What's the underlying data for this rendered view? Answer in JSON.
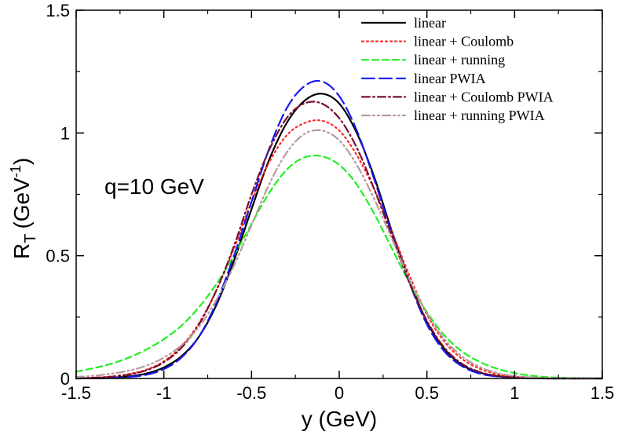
{
  "chart_data": {
    "type": "line",
    "xlabel": "y (GeV)",
    "ylabel_main": "R",
    "ylabel_sub": "T",
    "ylabel_unit": "(GeV",
    "ylabel_exp": "-1",
    "ylabel_close": ")",
    "annotation": "q=10 GeV",
    "xlim": [
      -1.5,
      1.5
    ],
    "ylim": [
      0,
      1.5
    ],
    "grid": false,
    "legend_position": "top-right",
    "x_ticks": [
      {
        "value": -1.5,
        "label": "-1.5"
      },
      {
        "value": -1.0,
        "label": "-1"
      },
      {
        "value": -0.5,
        "label": "-0.5"
      },
      {
        "value": 0.0,
        "label": "0"
      },
      {
        "value": 0.5,
        "label": "0.5"
      },
      {
        "value": 1.0,
        "label": "1"
      },
      {
        "value": 1.5,
        "label": "1.5"
      }
    ],
    "y_ticks": [
      {
        "value": 0.0,
        "label": "0"
      },
      {
        "value": 0.5,
        "label": "0.5"
      },
      {
        "value": 1.0,
        "label": "1"
      },
      {
        "value": 1.5,
        "label": "1.5"
      }
    ],
    "x": [
      -1.5,
      -1.4,
      -1.3,
      -1.2,
      -1.1,
      -1.0,
      -0.9,
      -0.8,
      -0.7,
      -0.6,
      -0.5,
      -0.4,
      -0.3,
      -0.2,
      -0.1,
      0.0,
      0.1,
      0.2,
      0.3,
      0.4,
      0.5,
      0.6,
      0.7,
      0.8,
      0.9,
      1.0,
      1.1,
      1.2,
      1.3,
      1.4,
      1.5
    ],
    "series": [
      {
        "name": "linear",
        "color": "#000000",
        "dash": "solid",
        "values": [
          0.0,
          0.001,
          0.003,
          0.008,
          0.02,
          0.045,
          0.09,
          0.17,
          0.3,
          0.48,
          0.69,
          0.89,
          1.04,
          1.13,
          1.16,
          1.12,
          1.0,
          0.82,
          0.6,
          0.4,
          0.23,
          0.12,
          0.055,
          0.024,
          0.01,
          0.004,
          0.001,
          0.0,
          0.0,
          0.0,
          0.0
        ]
      },
      {
        "name": "linear + Coulomb",
        "color": "#ff2a2a",
        "dash": "dotted",
        "values": [
          0.001,
          0.003,
          0.008,
          0.018,
          0.036,
          0.07,
          0.13,
          0.225,
          0.36,
          0.53,
          0.72,
          0.88,
          0.99,
          1.04,
          1.05,
          1.01,
          0.91,
          0.77,
          0.6,
          0.42,
          0.26,
          0.15,
          0.08,
          0.04,
          0.018,
          0.008,
          0.003,
          0.001,
          0.0,
          0.0,
          0.0
        ]
      },
      {
        "name": "linear + running",
        "color": "#22ee22",
        "dash": "dashed",
        "values": [
          0.028,
          0.042,
          0.06,
          0.085,
          0.118,
          0.16,
          0.215,
          0.29,
          0.385,
          0.5,
          0.63,
          0.755,
          0.85,
          0.9,
          0.905,
          0.87,
          0.79,
          0.67,
          0.53,
          0.39,
          0.27,
          0.175,
          0.11,
          0.068,
          0.04,
          0.022,
          0.011,
          0.005,
          0.002,
          0.001,
          0.0
        ]
      },
      {
        "name": "linear PWIA",
        "color": "#1a1aee",
        "dash": "longdash",
        "values": [
          0.0,
          0.001,
          0.002,
          0.006,
          0.015,
          0.038,
          0.085,
          0.17,
          0.31,
          0.5,
          0.72,
          0.935,
          1.1,
          1.19,
          1.21,
          1.15,
          1.01,
          0.81,
          0.59,
          0.39,
          0.22,
          0.11,
          0.05,
          0.02,
          0.008,
          0.003,
          0.001,
          0.0,
          0.0,
          0.0,
          0.0
        ]
      },
      {
        "name": "linear + Coulomb PWIA",
        "color": "#7a1030",
        "dash": "dashdot",
        "values": [
          0.001,
          0.003,
          0.007,
          0.016,
          0.033,
          0.066,
          0.125,
          0.22,
          0.36,
          0.54,
          0.75,
          0.93,
          1.06,
          1.12,
          1.12,
          1.06,
          0.94,
          0.77,
          0.58,
          0.39,
          0.235,
          0.125,
          0.06,
          0.027,
          0.011,
          0.004,
          0.001,
          0.0,
          0.0,
          0.0,
          0.0
        ]
      },
      {
        "name": "linear + running PWIA",
        "color": "#b89a9a",
        "dash": "dashdotdot",
        "values": [
          0.006,
          0.011,
          0.019,
          0.032,
          0.052,
          0.085,
          0.135,
          0.21,
          0.32,
          0.46,
          0.625,
          0.79,
          0.92,
          0.995,
          1.01,
          0.97,
          0.87,
          0.73,
          0.57,
          0.405,
          0.265,
          0.16,
          0.09,
          0.047,
          0.023,
          0.01,
          0.004,
          0.001,
          0.0,
          0.0,
          0.0
        ]
      }
    ]
  }
}
